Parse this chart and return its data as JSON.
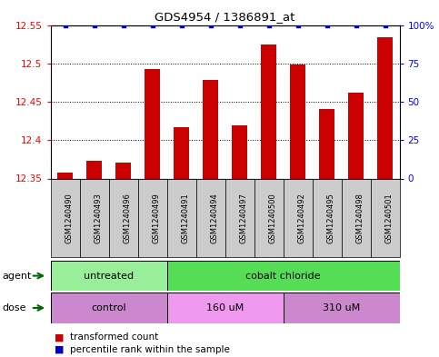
{
  "title": "GDS4954 / 1386891_at",
  "samples": [
    "GSM1240490",
    "GSM1240493",
    "GSM1240496",
    "GSM1240499",
    "GSM1240491",
    "GSM1240494",
    "GSM1240497",
    "GSM1240500",
    "GSM1240492",
    "GSM1240495",
    "GSM1240498",
    "GSM1240501"
  ],
  "values": [
    12.358,
    12.373,
    12.371,
    12.493,
    12.417,
    12.478,
    12.419,
    12.524,
    12.498,
    12.441,
    12.462,
    12.534
  ],
  "percentiles": [
    100,
    100,
    100,
    100,
    100,
    100,
    100,
    100,
    100,
    100,
    100,
    100
  ],
  "ylim_left": [
    12.35,
    12.55
  ],
  "yticks_left": [
    12.35,
    12.4,
    12.45,
    12.5,
    12.55
  ],
  "ylim_right": [
    0,
    100
  ],
  "yticks_right": [
    0,
    25,
    50,
    75,
    100
  ],
  "bar_color": "#cc0000",
  "dot_color": "#0000cc",
  "agent_groups": [
    {
      "label": "untreated",
      "start": 0,
      "end": 4,
      "color": "#99ee99"
    },
    {
      "label": "cobalt chloride",
      "start": 4,
      "end": 12,
      "color": "#55dd55"
    }
  ],
  "dose_groups": [
    {
      "label": "control",
      "start": 0,
      "end": 4,
      "color": "#cc88cc"
    },
    {
      "label": "160 uM",
      "start": 4,
      "end": 8,
      "color": "#ee99ee"
    },
    {
      "label": "310 uM",
      "start": 8,
      "end": 12,
      "color": "#cc88cc"
    }
  ],
  "legend_items": [
    {
      "label": "transformed count",
      "color": "#cc0000"
    },
    {
      "label": "percentile rank within the sample",
      "color": "#0000cc"
    }
  ],
  "xlabel_agent": "agent",
  "xlabel_dose": "dose",
  "bar_width": 0.55,
  "sample_box_color": "#cccccc",
  "background_color": "#ffffff"
}
